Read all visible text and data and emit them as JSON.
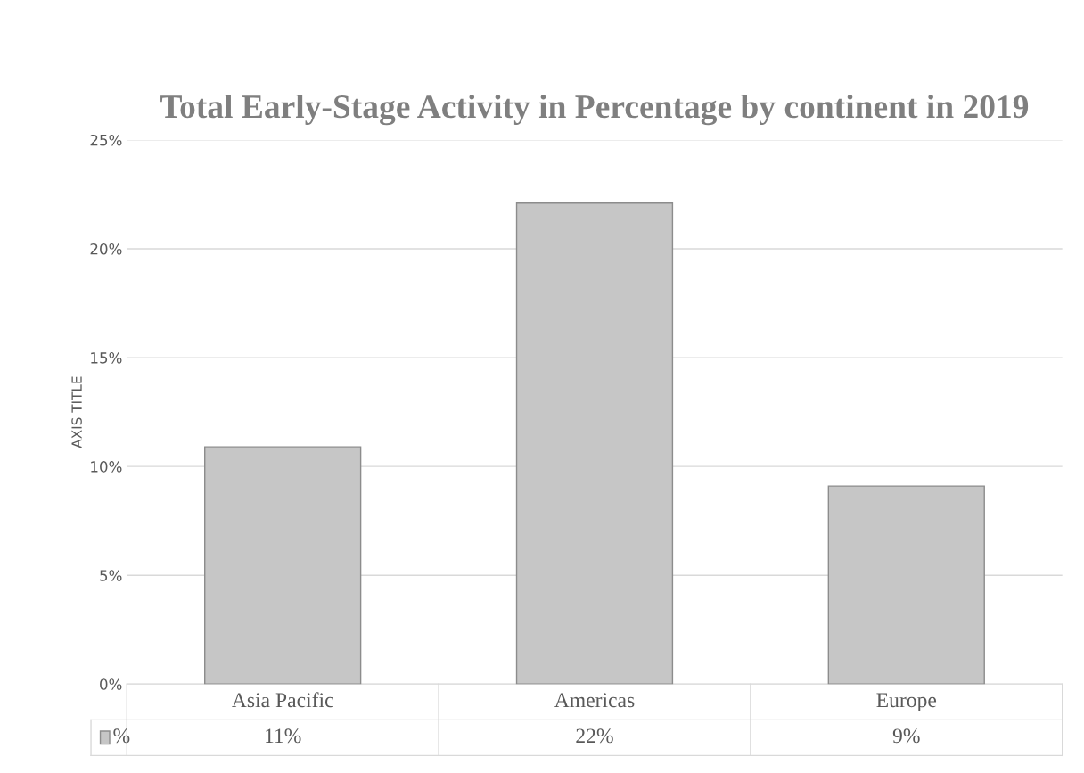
{
  "chart_data": {
    "type": "bar",
    "title": "Total Early-Stage Activity in Percentage by continent in 2019",
    "ylabel": "AXIS TITLE",
    "categories": [
      "Asia Pacific",
      "Americas",
      "Europe"
    ],
    "series": [
      {
        "name": "%",
        "color": "#c6c6c6",
        "values": [
          10.9,
          22.1,
          9.1
        ],
        "value_labels": [
          "11%",
          "22%",
          "9%"
        ]
      }
    ],
    "ylim": [
      0,
      25
    ],
    "yticks": [
      {
        "value": 0,
        "label": "0%"
      },
      {
        "value": 5,
        "label": "5%"
      },
      {
        "value": 10,
        "label": "10%"
      },
      {
        "value": 15,
        "label": "15%"
      },
      {
        "value": 20,
        "label": "20%"
      },
      {
        "value": 25,
        "label": "25%"
      }
    ],
    "grid": "y",
    "legend": "bottom"
  }
}
